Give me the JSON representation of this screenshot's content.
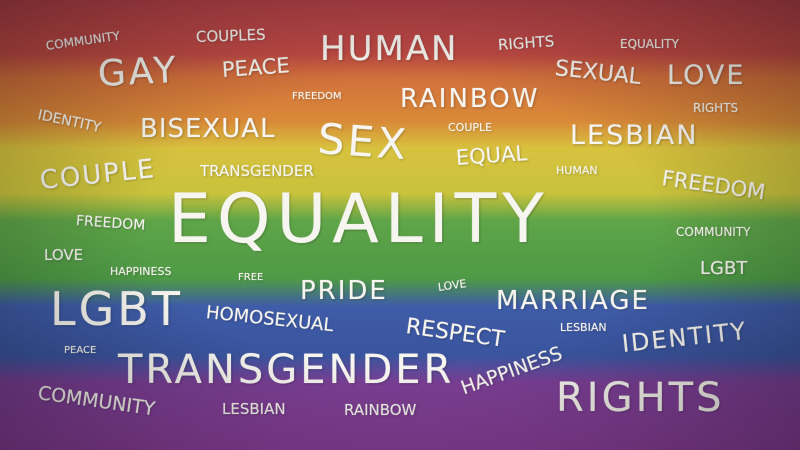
{
  "words": {
    "equality_main": "EQUALITY",
    "gay": "GAY",
    "human": "HUMAN",
    "sex": "SEX",
    "lgbt_big": "LGBT",
    "transgender_big": "TRANSGENDER",
    "rights_big": "RIGHTS",
    "rainbow_big": "RAINBOW",
    "bisexual": "BISEXUAL",
    "lesbian_big": "LESBIAN",
    "couple_big": "COUPLE",
    "freedom_big": "FREEDOM",
    "pride": "PRIDE",
    "marriage": "MARRIAGE",
    "sexual": "SEXUAL",
    "love_big": "LOVE",
    "peace_mid": "PEACE",
    "respect": "RESPECT",
    "identity_big": "IDENTITY",
    "community_big": "COMMUNITY",
    "homosexual": "HOMOSEXUAL",
    "happiness_big": "HAPPINESS",
    "equal": "EQUAL",
    "community_top": "COMMUNITY",
    "couples": "COUPLES",
    "rights_top": "RIGHTS",
    "equality_small": "EQUALITY",
    "freedom_small_top": "FREEDOM",
    "rights_small": "RIGHTS",
    "identity_small": "IDENTITY",
    "couple_small": "COUPLE",
    "transgender_small": "TRANSGENDER",
    "human_small": "HUMAN",
    "freedom_mid": "FREEDOM",
    "love_small": "LOVE",
    "community_right": "COMMUNITY",
    "happiness_small": "HAPPINESS",
    "free": "FREE",
    "love_tiny": "LOVE",
    "lgbt_small": "LGBT",
    "lesbian_small": "LESBIAN",
    "peace_small": "PEACE",
    "lesbian_bottom": "LESBIAN",
    "rainbow_bottom": "RAINBOW"
  },
  "colors": {
    "text": "#f7f5ef",
    "stripe_red": "#b5424a",
    "stripe_orange": "#d98a38",
    "stripe_yellow": "#d8c23e",
    "stripe_green": "#4e9a46",
    "stripe_blue": "#3a559f",
    "stripe_purple": "#8a3f99"
  }
}
